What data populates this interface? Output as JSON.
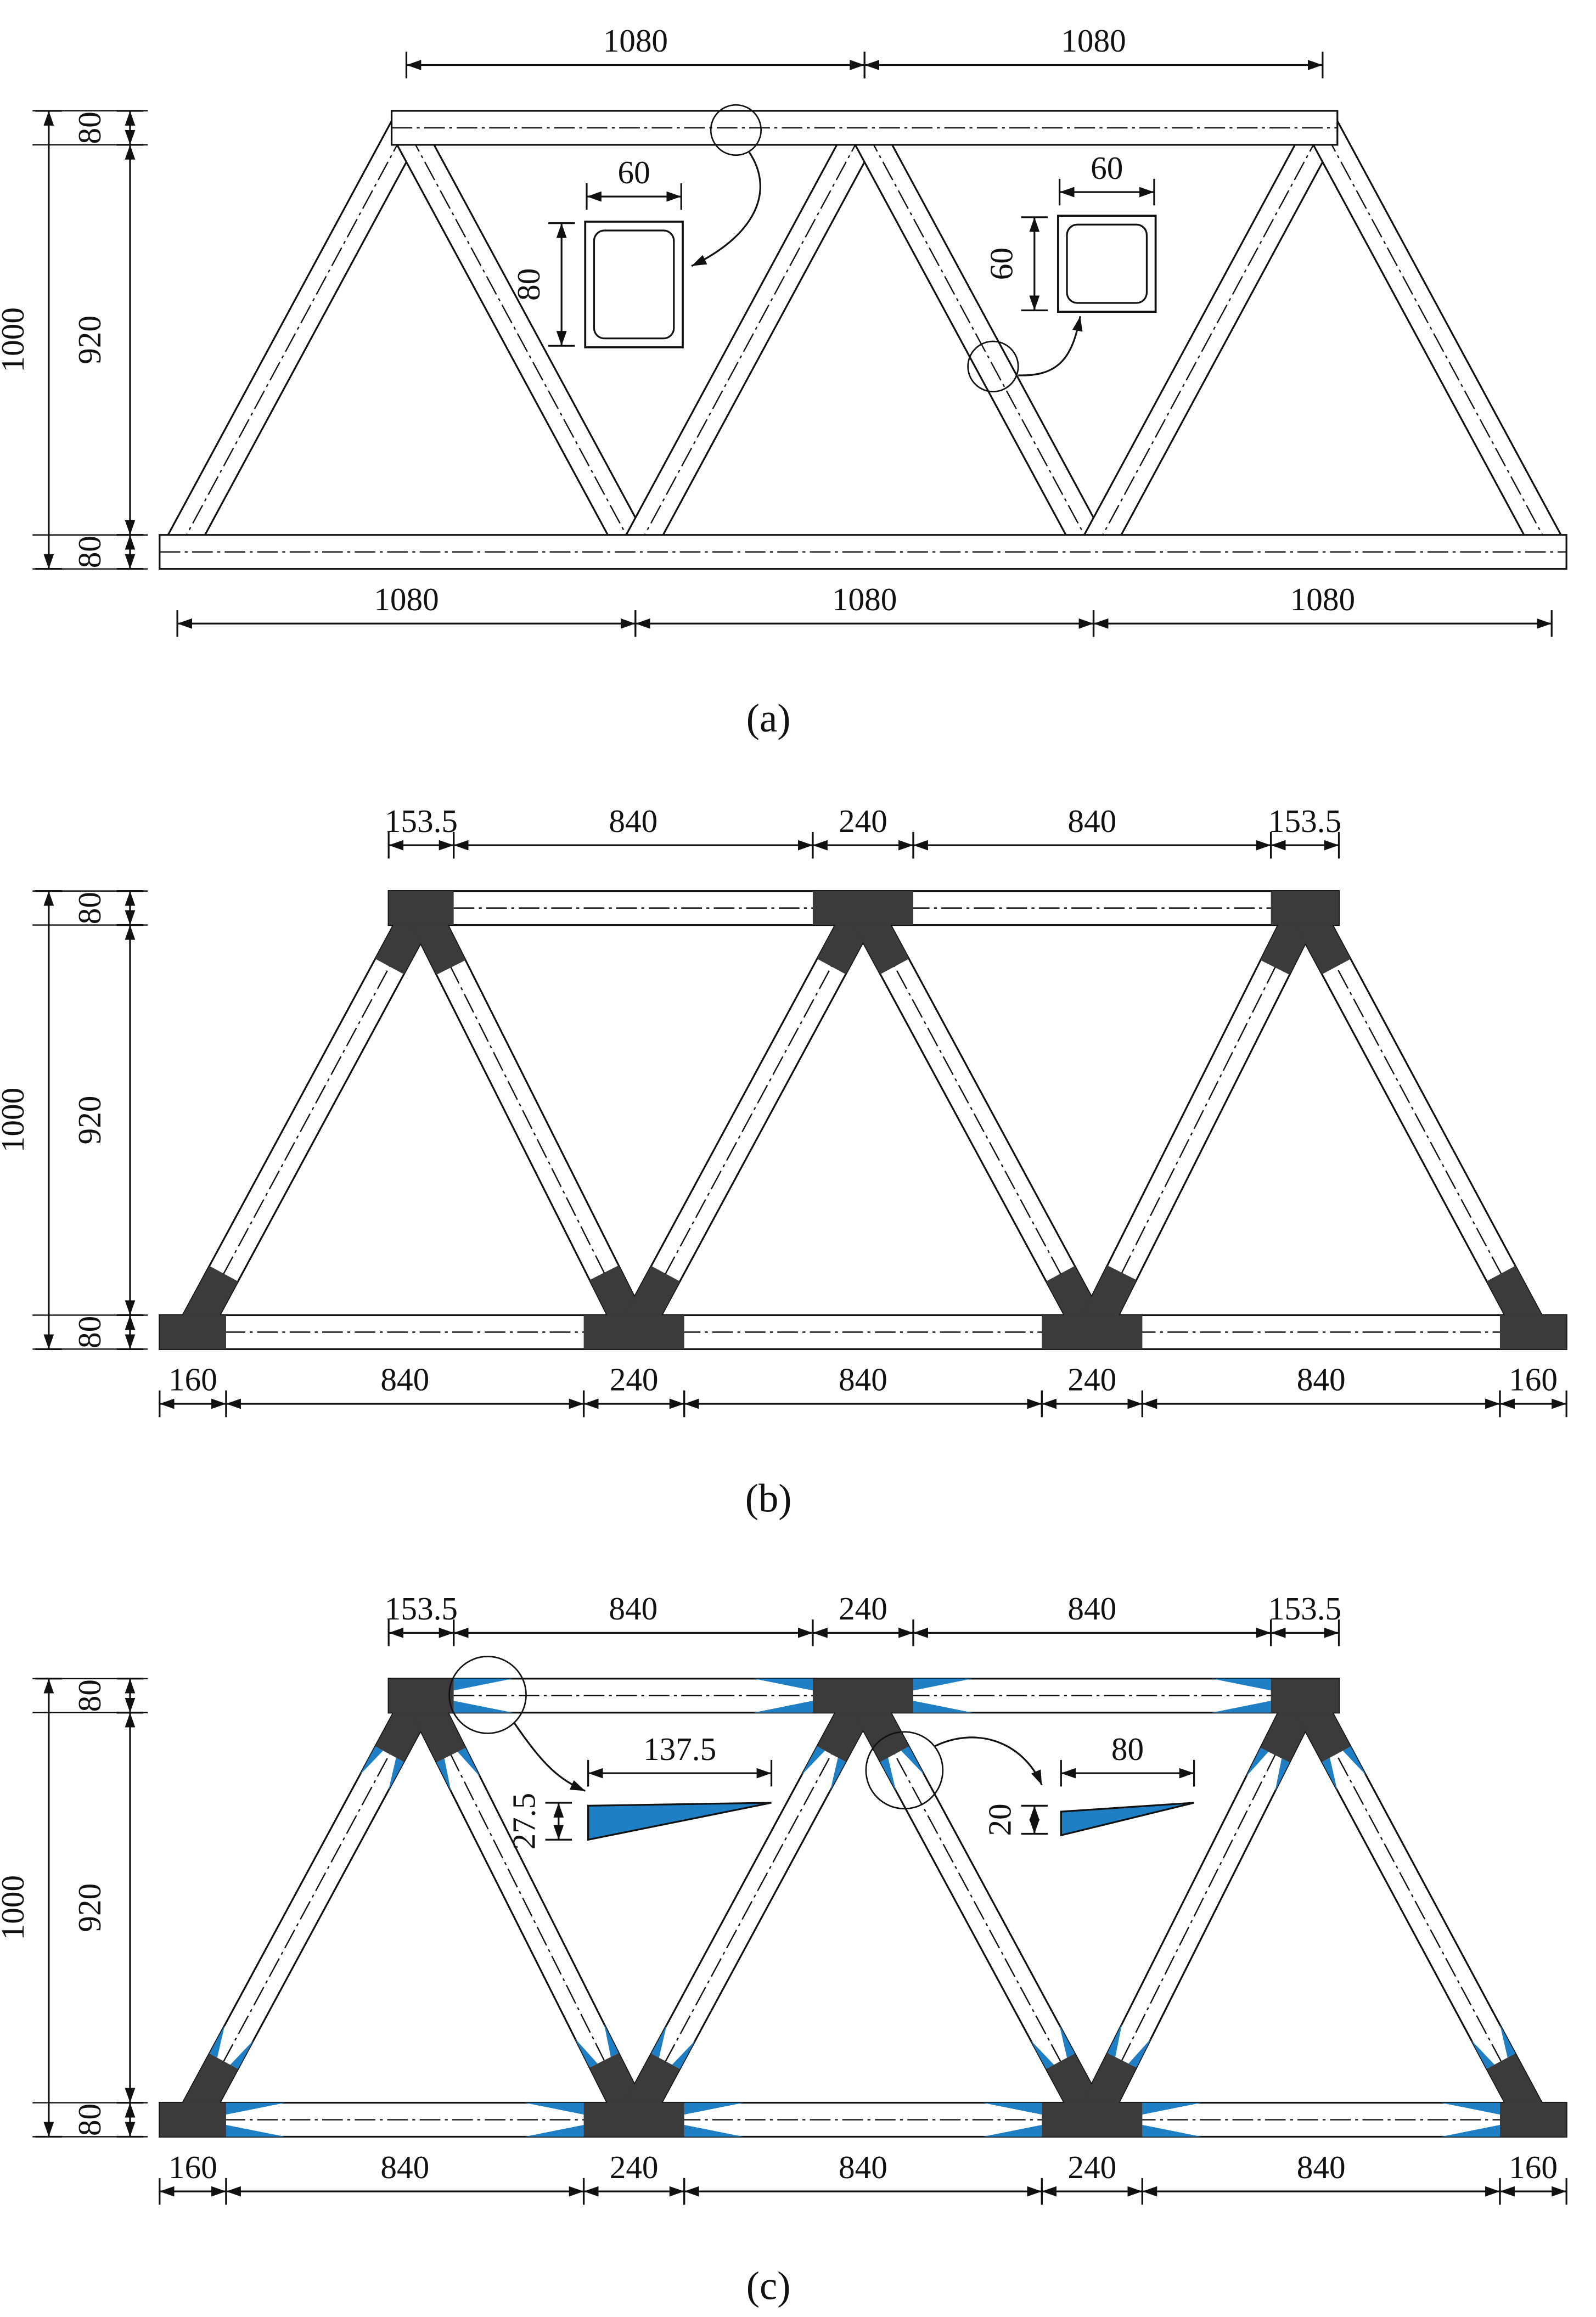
{
  "panels": [
    {
      "caption": "(a)",
      "top": [
        "1080",
        "1080"
      ],
      "bottom": [
        "1080",
        "1080",
        "1080"
      ],
      "height": "1000",
      "left": [
        "80",
        "920",
        "80"
      ],
      "callouts": [
        {
          "width": "60",
          "height": "80"
        },
        {
          "width": "60",
          "height": "60"
        }
      ]
    },
    {
      "caption": "(b)",
      "top": [
        "153.5",
        "840",
        "240",
        "840",
        "153.5"
      ],
      "bottom": [
        "160",
        "840",
        "240",
        "840",
        "240",
        "840",
        "160"
      ],
      "height": "1000",
      "left": [
        "80",
        "920",
        "80"
      ]
    },
    {
      "caption": "(c)",
      "top": [
        "153.5",
        "840",
        "240",
        "840",
        "153.5"
      ],
      "bottom": [
        "160",
        "840",
        "240",
        "840",
        "240",
        "840",
        "160"
      ],
      "height": "1000",
      "left": [
        "80",
        "920",
        "80"
      ],
      "callouts": [
        {
          "width": "137.5",
          "height": "27.5"
        },
        {
          "width": "80",
          "height": "20"
        }
      ]
    }
  ]
}
